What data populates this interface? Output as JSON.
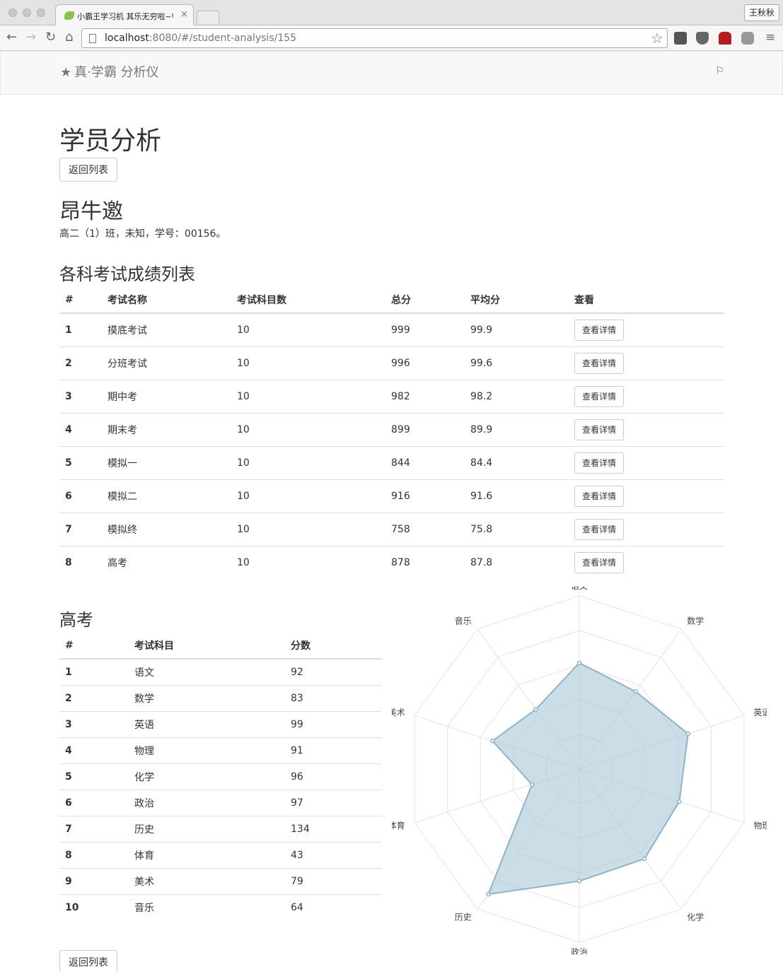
{
  "browser": {
    "tab_title": "小霸王学习机 其乐无穷啦~\\(≧▽≦)/~",
    "tab_close": "×",
    "profile_name": "王秋秋",
    "url_host": "localhost",
    "url_rest": ":8080/#/student-analysis/155"
  },
  "nav": {
    "brand": "真·学霸 分析仪"
  },
  "page": {
    "title": "学员分析",
    "back_label": "返回列表",
    "student_name": "昂牛邀",
    "student_info": "高二（1）班，未知，学号：00156。"
  },
  "exam_section": {
    "heading": "各科考试成绩列表",
    "headers": [
      "#",
      "考试名称",
      "考试科目数",
      "总分",
      "平均分",
      "查看"
    ],
    "button_label": "查看详情",
    "rows": [
      [
        "1",
        "摸底考试",
        "10",
        "999",
        "99.9"
      ],
      [
        "2",
        "分班考试",
        "10",
        "996",
        "99.6"
      ],
      [
        "3",
        "期中考",
        "10",
        "982",
        "98.2"
      ],
      [
        "4",
        "期末考",
        "10",
        "899",
        "89.9"
      ],
      [
        "5",
        "模拟一",
        "10",
        "844",
        "84.4"
      ],
      [
        "6",
        "模拟二",
        "10",
        "916",
        "91.6"
      ],
      [
        "7",
        "模拟终",
        "10",
        "758",
        "75.8"
      ],
      [
        "8",
        "高考",
        "10",
        "878",
        "87.8"
      ]
    ]
  },
  "detail_section": {
    "heading": "高考",
    "headers": [
      "#",
      "考试科目",
      "分数"
    ],
    "rows": [
      [
        "1",
        "语文",
        "92"
      ],
      [
        "2",
        "数学",
        "83"
      ],
      [
        "3",
        "英语",
        "99"
      ],
      [
        "4",
        "物理",
        "91"
      ],
      [
        "5",
        "化学",
        "96"
      ],
      [
        "6",
        "政治",
        "97"
      ],
      [
        "7",
        "历史",
        "134"
      ],
      [
        "8",
        "体育",
        "43"
      ],
      [
        "9",
        "美术",
        "79"
      ],
      [
        "10",
        "音乐",
        "64"
      ]
    ]
  },
  "chart_data": {
    "type": "radar",
    "categories": [
      "语文",
      "数学",
      "英语",
      "物理",
      "化学",
      "政治",
      "历史",
      "体育",
      "美术",
      "音乐"
    ],
    "values": [
      92,
      83,
      99,
      91,
      96,
      97,
      134,
      43,
      79,
      64
    ],
    "rmax": 150,
    "rings": 5,
    "fill_color": "#a9c6d6",
    "line_color": "#8cb4c9",
    "grid_color": "#e4e4e4"
  }
}
